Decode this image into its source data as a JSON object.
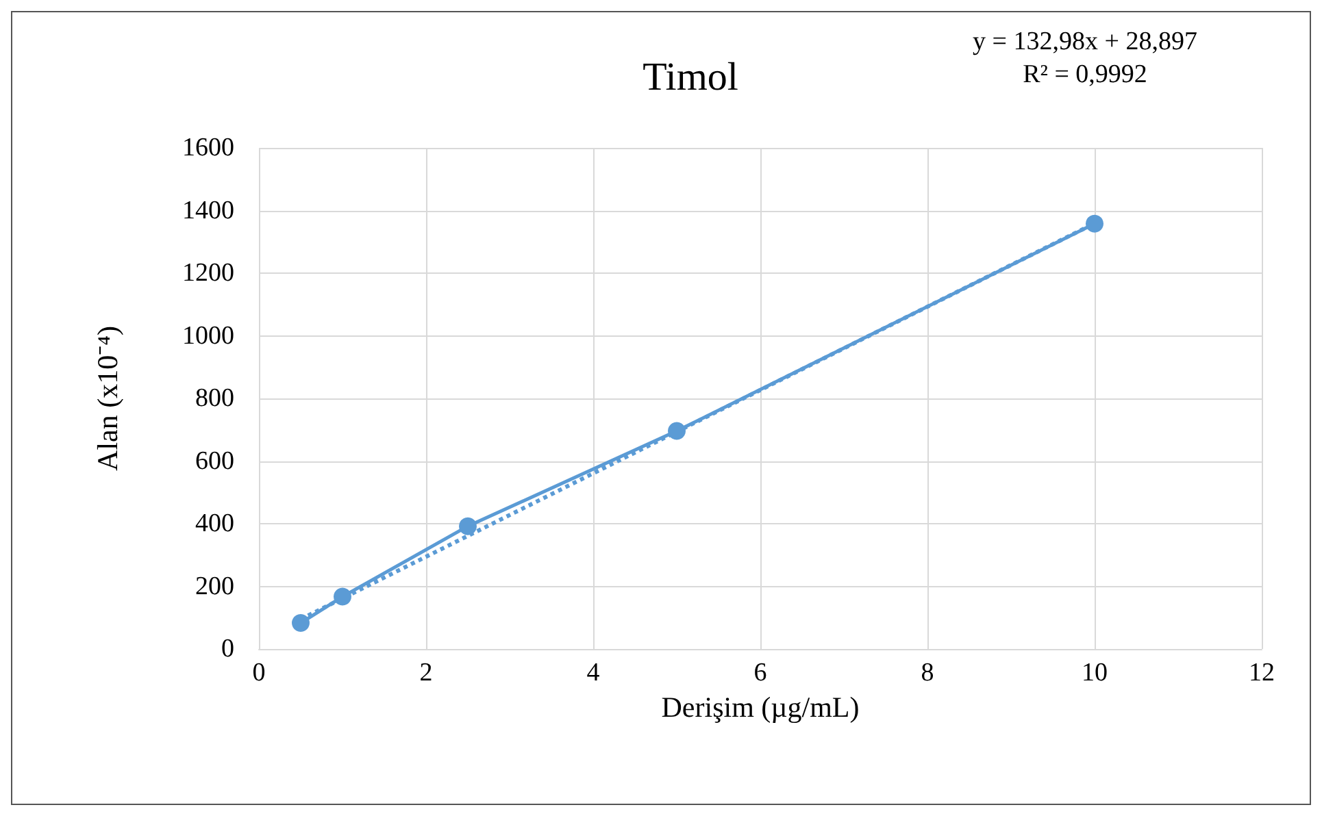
{
  "chart_data": {
    "type": "line",
    "title": "Timol",
    "xlabel": "Derişim (µg/mL)",
    "ylabel": "Alan (x10⁻⁴)",
    "annotations": [
      "y = 132,98x + 28,897",
      "R² = 0,9992"
    ],
    "x": [
      0.5,
      1,
      2.5,
      5,
      10
    ],
    "series": [
      {
        "color": "#5b9bd5",
        "values": [
          83,
          167,
          392,
          696,
          1358
        ],
        "marker": "circle",
        "line_style": "solid"
      },
      {
        "type": "line",
        "color": "#5b9bd5",
        "x": [
          0.5,
          10
        ],
        "values": [
          95,
          1359
        ],
        "line_style": "dotted"
      }
    ],
    "xlim": [
      0,
      12
    ],
    "xticks": [
      0,
      2,
      4,
      6,
      8,
      10,
      12
    ],
    "ylim": [
      0,
      1600
    ],
    "yticks": [
      0,
      200,
      400,
      600,
      800,
      1000,
      1200,
      1400,
      1600
    ],
    "grid": true
  }
}
